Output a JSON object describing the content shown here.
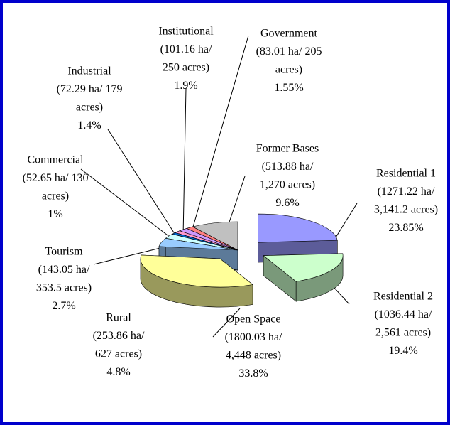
{
  "chart_data": {
    "type": "pie",
    "categories": [
      "Residential 1",
      "Residential 2",
      "Open Space",
      "Rural",
      "Tourism",
      "Commercial",
      "Industrial",
      "Institutional",
      "Government",
      "Former Bases"
    ],
    "areas": [
      [
        "(1271.22  ha/",
        "3,141.2 acres)"
      ],
      [
        "(1036.44 ha/",
        "2,561 acres)"
      ],
      [
        "(1800.03 ha/",
        "4,448 acres)"
      ],
      [
        "(253.86 ha/",
        "627 acres)"
      ],
      [
        "(143.05 ha/",
        "353.5 acres)"
      ],
      [
        "(52.65 ha/ 130",
        "acres)"
      ],
      [
        "(72.29 ha/ 179",
        "acres)"
      ],
      [
        "(101.16 ha/",
        "250 acres)"
      ],
      [
        "(83.01 ha/ 205",
        "acres)"
      ],
      [
        "(513.88 ha/",
        "1,270 acres)"
      ]
    ],
    "values": [
      23.85,
      19.4,
      33.8,
      4.8,
      2.7,
      1,
      1.4,
      1.9,
      1.55,
      9.6
    ],
    "value_labels": [
      "23.85%",
      "19.4%",
      "33.8%",
      "4.8%",
      "2.7%",
      "1%",
      "1.4%",
      "1.9%",
      "1.55%",
      "9.6%"
    ],
    "colors": [
      "#9999ff",
      "#ccffcc",
      "#ffff99",
      "#99ccff",
      "#ccffff",
      "#0066cc",
      "#ff99cc",
      "#cc99ff",
      "#ff8080",
      "#c0c0c0"
    ]
  }
}
